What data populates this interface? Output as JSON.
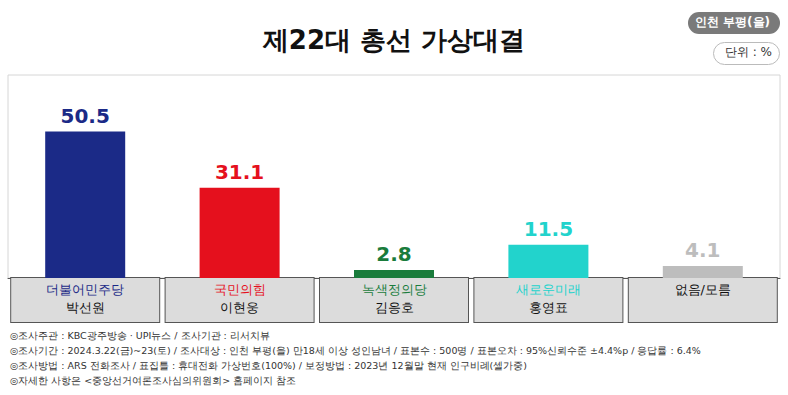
{
  "chart_data": {
    "type": "bar",
    "title": "제22대 총선 가상대결",
    "annotations": [
      "인천 부평(을)",
      "단위 : %"
    ],
    "categories": [
      "더불어민주당\n박선원",
      "국민의힘\n이현웅",
      "녹색정의당\n김응호",
      "새로운미래\n홍영표",
      "없음/모름"
    ],
    "values": [
      50.5,
      31.1,
      2.8,
      11.5,
      4.1
    ],
    "colors": [
      "#1b2a87",
      "#e5101d",
      "#1a7c3c",
      "#22d3cc",
      "#bdbdbd"
    ],
    "ylim": [
      0,
      70
    ],
    "data_labels": true,
    "tick_labels": "x",
    "grid": false,
    "footnotes": [
      "◎조사주관 : KBC광주방송 · UPI뉴스 / 조사기관 : 리서치뷰",
      "◎조사기간 : 2024.3.22(금)~23(토) / 조사대상 : 인천 부평(을) 만18세 이상 성인남녀 / 표본수 : 500명 / 표본오차 : 95%신뢰수준 ±4.4%p / 응답률 : 6.4%",
      "◎조사방법 : ARS 전화조사 / 표집틀 : 휴대전화 가상번호(100%) / 보정방법 : 2023년 12월말 현재 인구비례(셀가중)",
      "◎자세한 사항은 <중앙선거여론조사심의위원회> 홈페이지 참조"
    ]
  }
}
